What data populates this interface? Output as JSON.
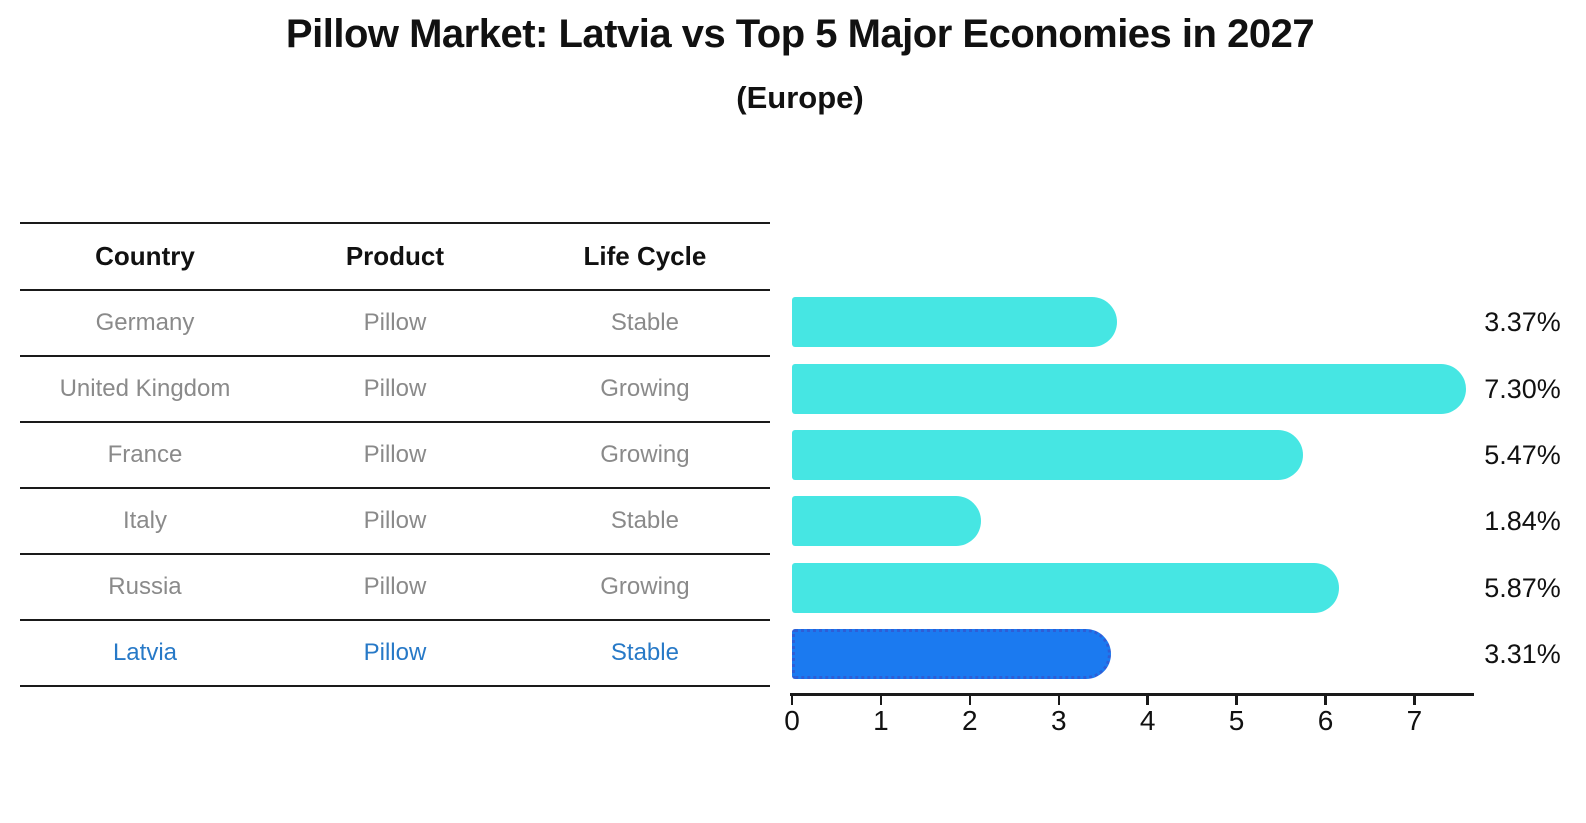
{
  "title": "Pillow Market: Latvia vs Top 5 Major Economies in 2027",
  "subtitle": "(Europe)",
  "table": {
    "headers": [
      "Country",
      "Product",
      "Life Cycle"
    ],
    "rows": [
      {
        "country": "Germany",
        "product": "Pillow",
        "life_cycle": "Stable",
        "highlighted": false
      },
      {
        "country": "United Kingdom",
        "product": "Pillow",
        "life_cycle": "Growing",
        "highlighted": false
      },
      {
        "country": "France",
        "product": "Pillow",
        "life_cycle": "Growing",
        "highlighted": false
      },
      {
        "country": "Italy",
        "product": "Pillow",
        "life_cycle": "Stable",
        "highlighted": false
      },
      {
        "country": "Russia",
        "product": "Pillow",
        "life_cycle": "Growing",
        "highlighted": false
      },
      {
        "country": "Latvia",
        "product": "Pillow",
        "life_cycle": "Stable",
        "highlighted": true
      }
    ]
  },
  "chart_data": {
    "type": "bar",
    "orientation": "horizontal",
    "title": "Pillow Market: Latvia vs Top 5 Major Economies in 2027",
    "subtitle": "(Europe)",
    "categories": [
      "Germany",
      "United Kingdom",
      "France",
      "Italy",
      "Russia",
      "Latvia"
    ],
    "values": [
      3.37,
      7.3,
      5.47,
      1.84,
      5.87,
      3.31
    ],
    "value_labels": [
      "3.37%",
      "7.30%",
      "5.47%",
      "1.84%",
      "5.87%",
      "3.31%"
    ],
    "x_ticks": [
      "0",
      "1",
      "2",
      "3",
      "4",
      "5",
      "6",
      "7"
    ],
    "xlim": [
      0,
      7.67
    ],
    "grid": false,
    "legend": false,
    "bar_color": "#46E6E3",
    "highlight_index": 5,
    "highlight_color": "#1B7AF0",
    "highlight_border_color": "#2E5ED6"
  },
  "colors": {
    "title_text": "#111111",
    "table_header_text": "#111111",
    "table_row_text": "#8a8a8a",
    "highlight_row_text": "#2779C7",
    "rule_line": "#1a1a1a",
    "tick_label_text": "#111111",
    "value_label_text": "#111111"
  }
}
